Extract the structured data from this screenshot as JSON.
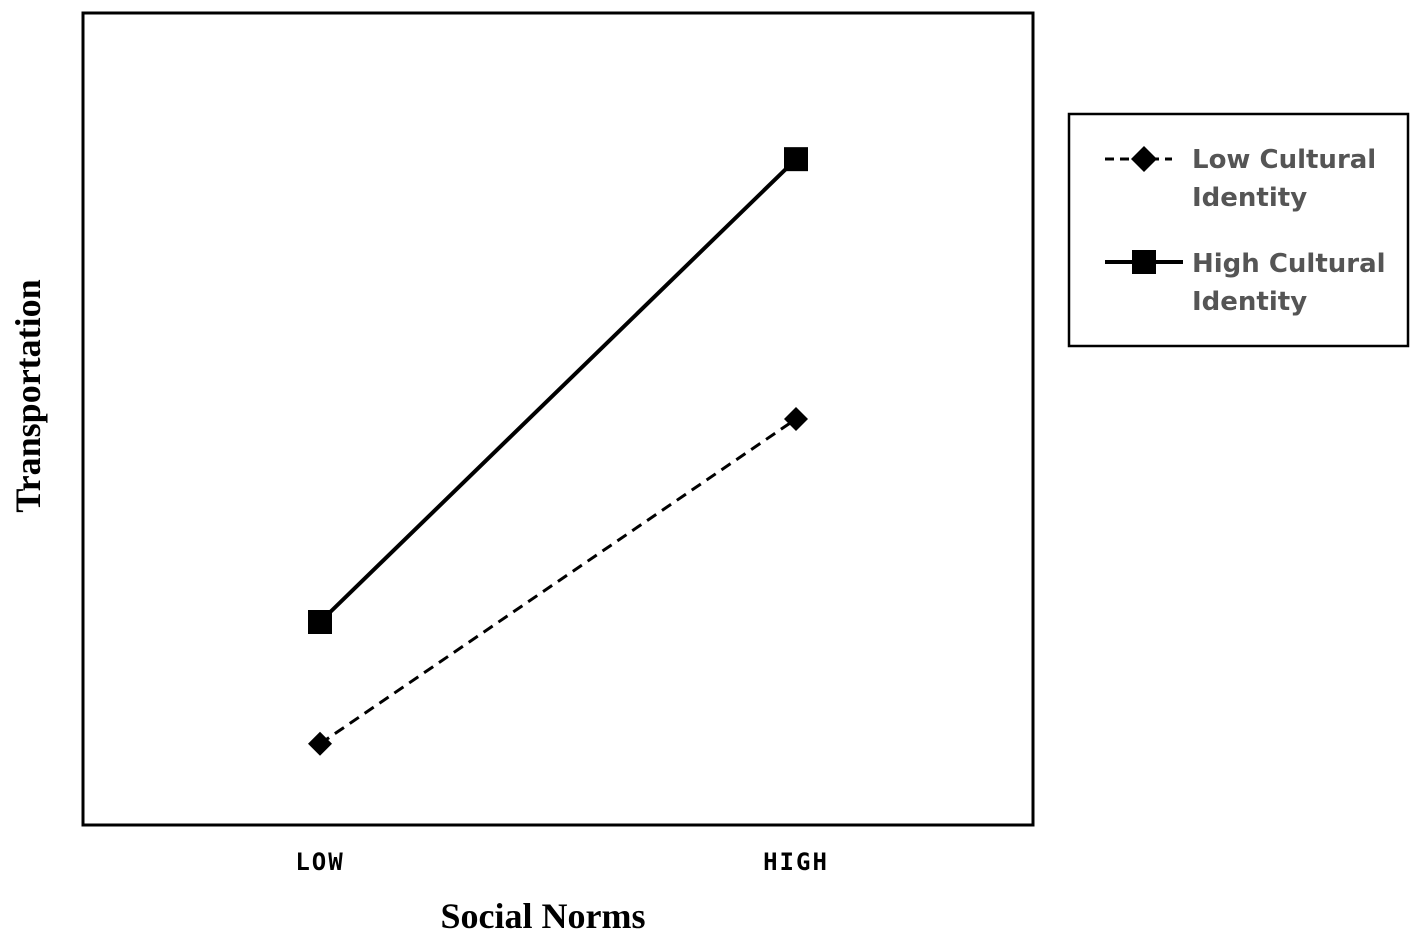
{
  "chart_data": {
    "type": "line",
    "title": "",
    "xlabel": "Social Norms",
    "ylabel": "Transportation",
    "categories": [
      "LOW",
      "HIGH"
    ],
    "ylim": [
      0,
      100
    ],
    "grid": false,
    "legend_position": "right",
    "series": [
      {
        "name": "Low Cultural Identity",
        "legend_lines": [
          "Low Cultural",
          "Identity"
        ],
        "values": [
          10,
          50
        ],
        "line_style": "dashed",
        "marker": "diamond",
        "color": "#000000"
      },
      {
        "name": "High Cultural Identity",
        "legend_lines": [
          "High Cultural",
          "Identity"
        ],
        "values": [
          25,
          82
        ],
        "line_style": "solid",
        "marker": "square",
        "color": "#000000"
      }
    ]
  }
}
